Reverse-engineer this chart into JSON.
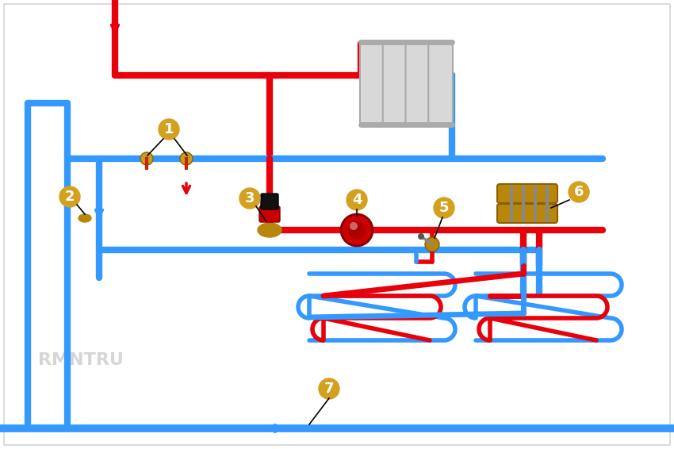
{
  "bg_color": "#ffffff",
  "red": "#e8000a",
  "blue": "#3399ff",
  "gold": "#d4a020",
  "pipe_lw": 6,
  "label_fontsize": 13,
  "watermark": "RMNTRU"
}
